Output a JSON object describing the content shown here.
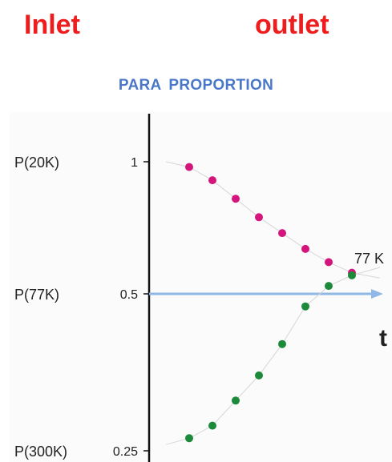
{
  "header": {
    "inlet": "Inlet",
    "outlet": "outlet"
  },
  "colors": {
    "header_red": "#ee1c1c",
    "title_blue": "#4a78c8",
    "arrow_blue": "#8fb8e6",
    "para_series": "#d4157c",
    "ortho_series": "#1c8a3a"
  },
  "chart_data": {
    "type": "scatter",
    "title": "PARA  PROPORTION",
    "xlabel": "t",
    "ylabel": "",
    "y_ticks": [
      {
        "value": 1,
        "label": "1",
        "name": "P(20K)"
      },
      {
        "value": 0.5,
        "label": "0.5",
        "name": "P(77K)"
      },
      {
        "value": 0.25,
        "label": "0.25",
        "name": "P(300K)"
      }
    ],
    "reference_line": {
      "value": 0.5,
      "label": "77 K"
    },
    "series": [
      {
        "color": "#d4157c",
        "start": {
          "x": 0,
          "y": 1.0
        },
        "points": [
          {
            "x": 1,
            "y": 0.98
          },
          {
            "x": 2,
            "y": 0.93
          },
          {
            "x": 3,
            "y": 0.86
          },
          {
            "x": 4,
            "y": 0.79
          },
          {
            "x": 5,
            "y": 0.73
          },
          {
            "x": 6,
            "y": 0.67
          },
          {
            "x": 7,
            "y": 0.62
          },
          {
            "x": 8,
            "y": 0.58
          }
        ],
        "end": {
          "x": 9.2,
          "y": 0.56
        }
      },
      {
        "color": "#1c8a3a",
        "start": {
          "x": 0,
          "y": 0.26
        },
        "points": [
          {
            "x": 1,
            "y": 0.27
          },
          {
            "x": 2,
            "y": 0.29
          },
          {
            "x": 3,
            "y": 0.33
          },
          {
            "x": 4,
            "y": 0.37
          },
          {
            "x": 5,
            "y": 0.42
          },
          {
            "x": 6,
            "y": 0.48
          },
          {
            "x": 7,
            "y": 0.53
          },
          {
            "x": 8,
            "y": 0.57
          }
        ],
        "end": {
          "x": 9.2,
          "y": 0.6
        }
      }
    ]
  }
}
